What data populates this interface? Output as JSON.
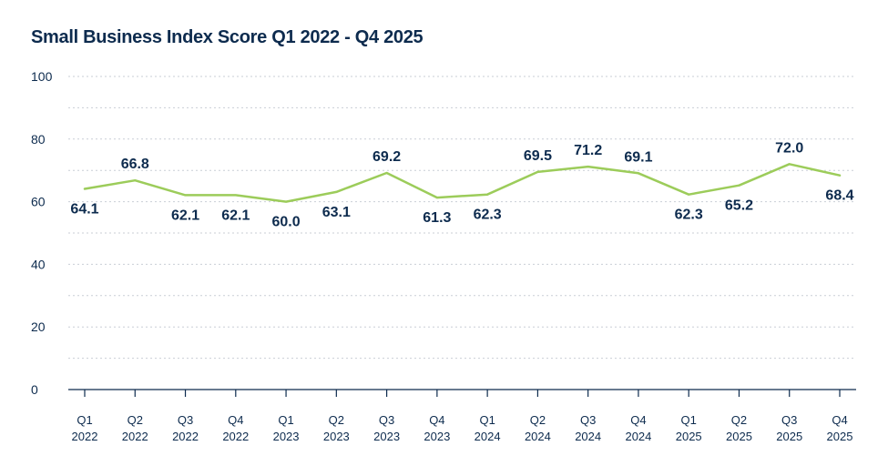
{
  "chart_data": {
    "type": "line",
    "title": "Small Business Index Score Q1 2022 - Q4 2025",
    "xlabel": "",
    "ylabel": "",
    "ylim": [
      0,
      100
    ],
    "yticks": [
      "0",
      "20",
      "40",
      "60",
      "80",
      "100"
    ],
    "grid": true,
    "legend": "none",
    "categories": [
      [
        "Q1",
        "2022"
      ],
      [
        "Q2",
        "2022"
      ],
      [
        "Q3",
        "2022"
      ],
      [
        "Q4",
        "2022"
      ],
      [
        "Q1",
        "2023"
      ],
      [
        "Q2",
        "2023"
      ],
      [
        "Q3",
        "2023"
      ],
      [
        "Q4",
        "2023"
      ],
      [
        "Q1",
        "2024"
      ],
      [
        "Q2",
        "2024"
      ],
      [
        "Q3",
        "2024"
      ],
      [
        "Q4",
        "2024"
      ],
      [
        "Q1",
        "2025"
      ],
      [
        "Q2",
        "2025"
      ],
      [
        "Q3",
        "2025"
      ],
      [
        "Q4",
        "2025"
      ]
    ],
    "series": [
      {
        "values": [
          64.1,
          66.8,
          62.1,
          62.1,
          60.0,
          63.1,
          69.2,
          61.3,
          62.3,
          69.5,
          71.2,
          69.1,
          62.3,
          65.2,
          72.0,
          68.4
        ],
        "labels": [
          "64.1",
          "66.8",
          "62.1",
          "62.1",
          "60.0",
          "63.1",
          "69.2",
          "61.3",
          "62.3",
          "69.5",
          "71.2",
          "69.1",
          "62.3",
          "65.2",
          "72.0",
          "68.4"
        ],
        "label_positions": [
          "below",
          "above",
          "below",
          "below",
          "below",
          "below",
          "above",
          "below",
          "below",
          "above",
          "above",
          "above",
          "below",
          "below",
          "above",
          "below"
        ]
      }
    ],
    "colors": {
      "line": "#9ccc5a",
      "text": "#0d2b4e",
      "grid": "#c9ced6"
    }
  }
}
